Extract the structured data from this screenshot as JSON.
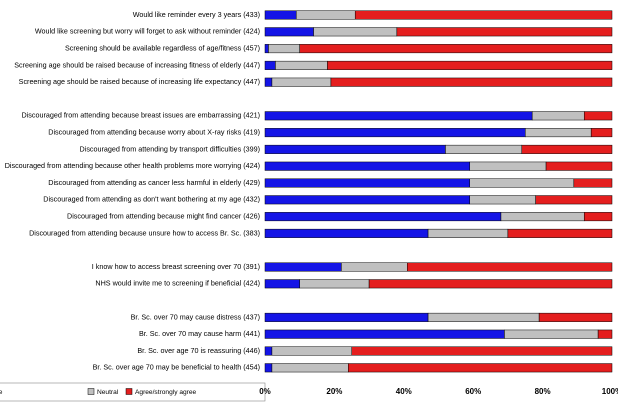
{
  "chart_data": {
    "type": "stacked-barh",
    "categories": [
      "Would like reminder every 3 years (433)",
      "Would like screening but worry will forget to ask  without reminder (424)",
      "Screening should be available regardless of age/fitness (457)",
      "Screening age should be raised because of increasing fitness of elderly (447)",
      "Screening age should be raised because of increasing life expectancy (447)",
      null,
      "Discouraged from attending because breast issues are embarrassing (421)",
      "Discouraged from attending because worry about X-ray risks (419)",
      "Discouraged from attending by transport difficulties (399)",
      "Discouraged from attending because other health problems more worrying (424)",
      "Discouraged from attending as cancer less harmful in elderly (429)",
      "Discouraged from attending as don't want bothering at my age (432)",
      "Discouraged from attending because might find cancer (426)",
      "Discouraged from attending because unsure how to access Br. Sc. (383)",
      null,
      "I know how to access breast screening over 70 (391)",
      "NHS would invite me to screening if beneficial (424)",
      null,
      "Br. Sc. over 70 may cause distress (437)",
      "Br. Sc. over 70 may cause harm (441)",
      "Br. Sc. over age 70 is reassuring (446)",
      "Br. Sc. over age 70 may be beneficial to health (454)"
    ],
    "series": [
      {
        "name": "Strongly disagree/disagree",
        "color": "#1414e6",
        "values": [
          9,
          14,
          1,
          3,
          2,
          null,
          77,
          75,
          52,
          59,
          59,
          59,
          68,
          47,
          null,
          22,
          10,
          null,
          47,
          69,
          2,
          2
        ]
      },
      {
        "name": "Neutral",
        "color": "#c0c0c0",
        "values": [
          17,
          24,
          9,
          15,
          17,
          null,
          15,
          19,
          22,
          22,
          30,
          19,
          24,
          23,
          null,
          19,
          20,
          null,
          32,
          27,
          23,
          22
        ]
      },
      {
        "name": "Agree/strongly agree",
        "color": "#e41e1e",
        "values": [
          74,
          62,
          90,
          82,
          81,
          null,
          8,
          6,
          26,
          19,
          11,
          22,
          8,
          30,
          null,
          59,
          70,
          null,
          21,
          4,
          75,
          76
        ]
      }
    ],
    "xlim": [
      0,
      100
    ],
    "xticks": [
      {
        "value": 0,
        "label": "0%"
      },
      {
        "value": 20,
        "label": "20%"
      },
      {
        "value": 40,
        "label": "40%"
      },
      {
        "value": 60,
        "label": "60%"
      },
      {
        "value": 80,
        "label": "80%"
      },
      {
        "value": 100,
        "label": "100%"
      }
    ]
  }
}
